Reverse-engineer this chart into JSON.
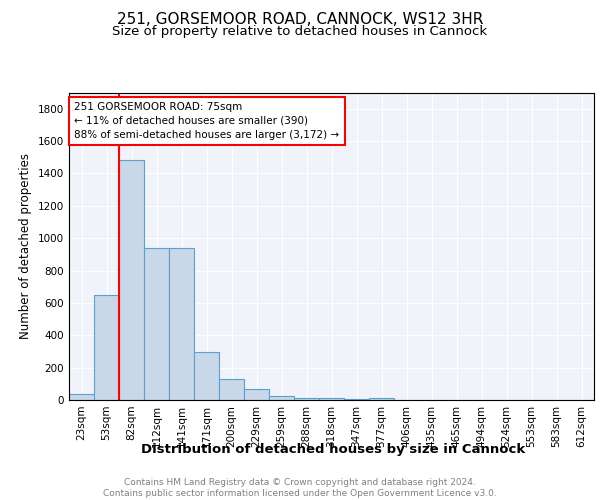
{
  "title1": "251, GORSEMOOR ROAD, CANNOCK, WS12 3HR",
  "title2": "Size of property relative to detached houses in Cannock",
  "xlabel": "Distribution of detached houses by size in Cannock",
  "ylabel": "Number of detached properties",
  "bar_color": "#c8d8e8",
  "bar_edge_color": "#5a9fd4",
  "background_color": "#f0f4fa",
  "grid_color": "white",
  "bin_labels": [
    "23sqm",
    "53sqm",
    "82sqm",
    "112sqm",
    "141sqm",
    "171sqm",
    "200sqm",
    "229sqm",
    "259sqm",
    "288sqm",
    "318sqm",
    "347sqm",
    "377sqm",
    "406sqm",
    "435sqm",
    "465sqm",
    "494sqm",
    "524sqm",
    "553sqm",
    "583sqm",
    "612sqm"
  ],
  "bar_heights": [
    35,
    650,
    1480,
    940,
    940,
    295,
    130,
    65,
    25,
    15,
    10,
    5,
    15,
    0,
    0,
    0,
    0,
    0,
    0,
    0,
    0
  ],
  "red_line_x": 2,
  "ylim": [
    0,
    1900
  ],
  "yticks": [
    0,
    200,
    400,
    600,
    800,
    1000,
    1200,
    1400,
    1600,
    1800
  ],
  "annotation_text": "251 GORSEMOOR ROAD: 75sqm\n← 11% of detached houses are smaller (390)\n88% of semi-detached houses are larger (3,172) →",
  "footer_text": "Contains HM Land Registry data © Crown copyright and database right 2024.\nContains public sector information licensed under the Open Government Licence v3.0.",
  "title1_fontsize": 11,
  "title2_fontsize": 9.5,
  "xlabel_fontsize": 9.5,
  "ylabel_fontsize": 8.5,
  "tick_fontsize": 7.5,
  "annotation_fontsize": 7.5,
  "footer_fontsize": 6.5
}
